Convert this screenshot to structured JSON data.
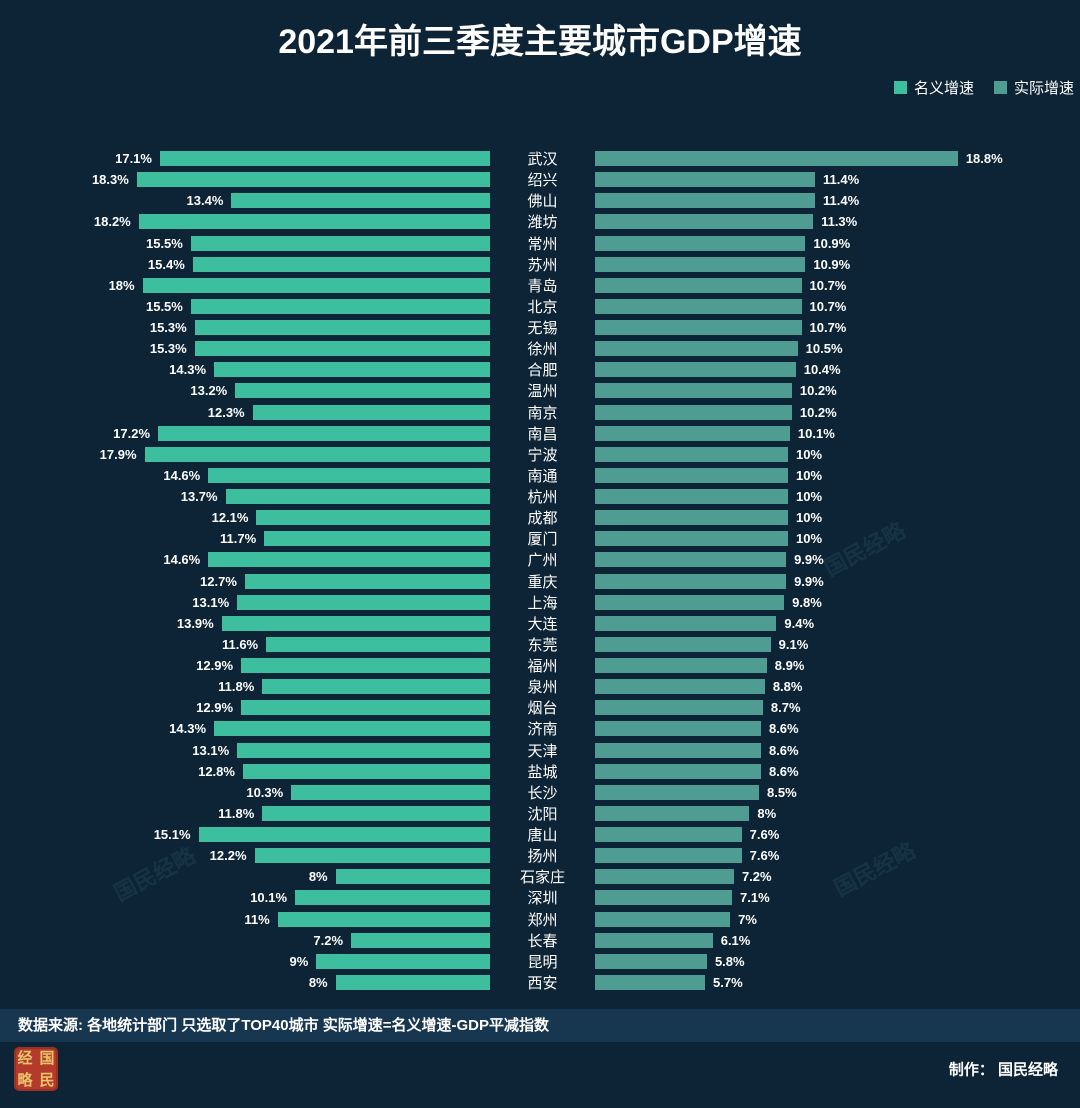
{
  "title": "2021年前三季度主要城市GDP增速",
  "legend": [
    {
      "label": "名义增速",
      "color": "#3dbf9f"
    },
    {
      "label": "实际增速",
      "color": "#4f9d92"
    }
  ],
  "colors": {
    "background": "#0d2436",
    "nominal_bar": "#3dbf9f",
    "real_bar": "#4f9d92",
    "footer_bg": "#17364f",
    "seal_bg": "#b43a2c",
    "seal_text": "#e9c46a"
  },
  "watermark_text": "国民经略",
  "footer": {
    "source": "数据来源: 各地统计部门  只选取了TOP40城市  实际增速=名义增速-GDP平减指数",
    "credit": "制作： 国民经略",
    "seal_chars": [
      "经",
      "国",
      "略",
      "民"
    ]
  },
  "chart_data": {
    "type": "bar",
    "subtype": "tornado",
    "title": "2021年前三季度主要城市GDP增速",
    "legend_position": "top-right",
    "grid": false,
    "value_suffix": "%",
    "xlim": [
      0,
      18.8
    ],
    "categories": [
      "武汉",
      "绍兴",
      "佛山",
      "潍坊",
      "常州",
      "苏州",
      "青岛",
      "北京",
      "无锡",
      "徐州",
      "合肥",
      "温州",
      "南京",
      "南昌",
      "宁波",
      "南通",
      "杭州",
      "成都",
      "厦门",
      "广州",
      "重庆",
      "上海",
      "大连",
      "东莞",
      "福州",
      "泉州",
      "烟台",
      "济南",
      "天津",
      "盐城",
      "长沙",
      "沈阳",
      "唐山",
      "扬州",
      "石家庄",
      "深圳",
      "郑州",
      "长春",
      "昆明",
      "西安"
    ],
    "series": [
      {
        "name": "名义增速",
        "side": "left",
        "values": [
          17.1,
          18.3,
          13.4,
          18.2,
          15.5,
          15.4,
          18,
          15.5,
          15.3,
          15.3,
          14.3,
          13.2,
          12.3,
          17.2,
          17.9,
          14.6,
          13.7,
          12.1,
          11.7,
          14.6,
          12.7,
          13.1,
          13.9,
          11.6,
          12.9,
          11.8,
          12.9,
          14.3,
          13.1,
          12.8,
          10.3,
          11.8,
          15.1,
          12.2,
          8,
          10.1,
          11,
          7.2,
          9,
          8
        ]
      },
      {
        "name": "实际增速",
        "side": "right",
        "values": [
          18.8,
          11.4,
          11.4,
          11.3,
          10.9,
          10.9,
          10.7,
          10.7,
          10.7,
          10.5,
          10.4,
          10.2,
          10.2,
          10.1,
          10,
          10,
          10,
          10,
          10,
          9.9,
          9.9,
          9.8,
          9.4,
          9.1,
          8.9,
          8.8,
          8.7,
          8.6,
          8.6,
          8.6,
          8.5,
          8,
          7.6,
          7.6,
          7.2,
          7.1,
          7,
          6.1,
          5.8,
          5.7
        ]
      }
    ]
  }
}
